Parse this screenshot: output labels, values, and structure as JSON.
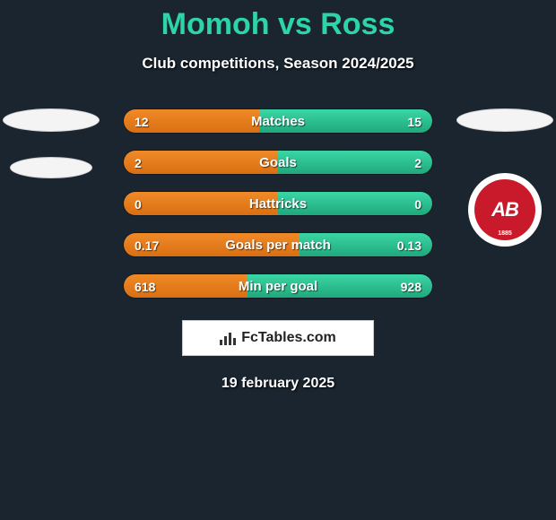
{
  "title": {
    "player1": "Momoh",
    "vs": "vs",
    "player2": "Ross"
  },
  "subtitle": "Club competitions, Season 2024/2025",
  "colors": {
    "bg": "#1a2530",
    "accent_title": "#2dd4a8",
    "bar_left": "#e87b1b",
    "bar_right": "#28c194",
    "club_red": "#c81a2a"
  },
  "stats": [
    {
      "label": "Matches",
      "left_val": "12",
      "right_val": "15",
      "left_pct": 44,
      "right_pct": 56
    },
    {
      "label": "Goals",
      "left_val": "2",
      "right_val": "2",
      "left_pct": 50,
      "right_pct": 50
    },
    {
      "label": "Hattricks",
      "left_val": "0",
      "right_val": "0",
      "left_pct": 50,
      "right_pct": 50
    },
    {
      "label": "Goals per match",
      "left_val": "0.17",
      "right_val": "0.13",
      "left_pct": 57,
      "right_pct": 43
    },
    {
      "label": "Min per goal",
      "left_val": "618",
      "right_val": "928",
      "left_pct": 40,
      "right_pct": 60
    }
  ],
  "brand": "FcTables.com",
  "date": "19 february 2025",
  "club_badge": {
    "initials": "AB",
    "year": "1885"
  }
}
